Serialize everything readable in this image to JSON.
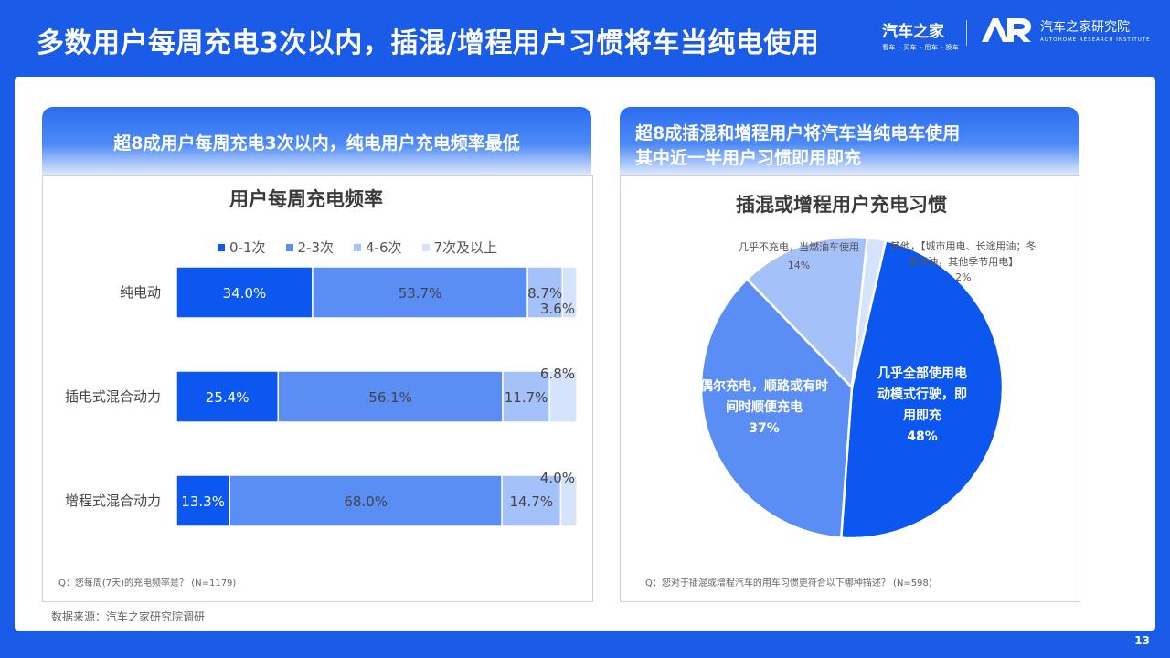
{
  "header": {
    "title": "多数用户每周充电3次以内，插混/增程用户习惯将车当纯电使用",
    "logo_primary": "汽车之家",
    "logo_primary_sub": "看车 · 买车 · 用车 · 换车",
    "logo_secondary": "汽车之家研究院",
    "logo_secondary_sub": "AUTOHOME RESEARCH INSTITUTE"
  },
  "left_panel": {
    "heading": "超8成用户每周充电3次以内，纯电用户充电频率最低",
    "footnote": "Q：您每周(7天)的充电频率是？  (N=1179)"
  },
  "right_panel": {
    "heading_line1": "超8成插混和增程用户将汽车当纯电车使用",
    "heading_line2": "其中近一半用户习惯即用即充",
    "footnote": "Q：您对于插混或增程汽车的用车习惯更符合以下哪种描述？  (N=598)"
  },
  "source": "数据来源：汽车之家研究院调研",
  "page_number": "13",
  "colors": {
    "c1": "#0b57f0",
    "c2": "#5b8ef5",
    "c3": "#a5c1fa",
    "c4": "#d6e3fd"
  },
  "chart_data": [
    {
      "type": "bar",
      "orientation": "horizontal-stacked-100",
      "title": "用户每周充电频率",
      "legend_position": "top",
      "categories": [
        "纯电动",
        "插电式混合动力",
        "增程式混合动力"
      ],
      "series": [
        {
          "name": "0-1次",
          "values": [
            34.0,
            25.4,
            13.3
          ],
          "labels": [
            "34.0%",
            "25.4%",
            "13.3%"
          ]
        },
        {
          "name": "2-3次",
          "values": [
            53.7,
            56.1,
            68.0
          ],
          "labels": [
            "53.7%",
            "56.1%",
            "68.0%"
          ]
        },
        {
          "name": "4-6次",
          "values": [
            8.7,
            11.7,
            14.7
          ],
          "labels": [
            "8.7%",
            "11.7%",
            "14.7%"
          ]
        },
        {
          "name": "7次及以上",
          "values": [
            3.6,
            6.8,
            4.0
          ],
          "labels": [
            "3.6%",
            "6.8%",
            "4.0%"
          ]
        }
      ]
    },
    {
      "type": "pie",
      "title": "插混或增程用户充电习惯",
      "slices": [
        {
          "label": "几乎全部使用电动模式行驶，即用即充",
          "label_lines": [
            "几乎全部使用电",
            "动模式行驶，即",
            "用即充"
          ],
          "value": 48,
          "value_label": "48%"
        },
        {
          "label": "偶尔充电，顺路或有时间时顺便充电",
          "label_lines": [
            "偶尔充电，顺路或有时",
            "间时顺便充电"
          ],
          "value": 37,
          "value_label": "37%"
        },
        {
          "label": "几乎不充电，当燃油车使用",
          "label_lines": [
            "几乎不充电，当燃油车使用"
          ],
          "value": 14,
          "value_label": "14%"
        },
        {
          "label": "其他，【城市用电、长途用油；冬季用油，其他季节用电】",
          "label_lines": [
            "其他，【城市用电、长途用油；冬",
            "季用油，其他季节用电】"
          ],
          "value": 2,
          "value_label": "2%"
        }
      ]
    }
  ]
}
